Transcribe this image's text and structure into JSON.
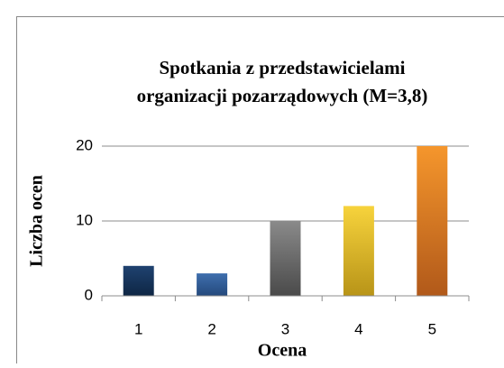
{
  "chart_data": {
    "type": "bar",
    "title": [
      "Spotkania z przedstawicielami",
      "organizacji pozarządowych (M=3,8)"
    ],
    "x_label": "Ocena",
    "y_label": "Liczba ocen",
    "categories": [
      "1",
      "2",
      "3",
      "4",
      "5"
    ],
    "values": [
      4,
      3,
      10,
      12,
      20
    ],
    "colors": [
      [
        "#1f4270",
        "#0e2644"
      ],
      [
        "#3f6fae",
        "#24497c"
      ],
      [
        "#8a8a8a",
        "#4a4a4a"
      ],
      [
        "#f7d33c",
        "#b89418"
      ],
      [
        "#f5962c",
        "#b1591a"
      ]
    ],
    "ylim": [
      0,
      20
    ],
    "yticks": [
      0,
      10,
      20
    ],
    "grid": true
  }
}
